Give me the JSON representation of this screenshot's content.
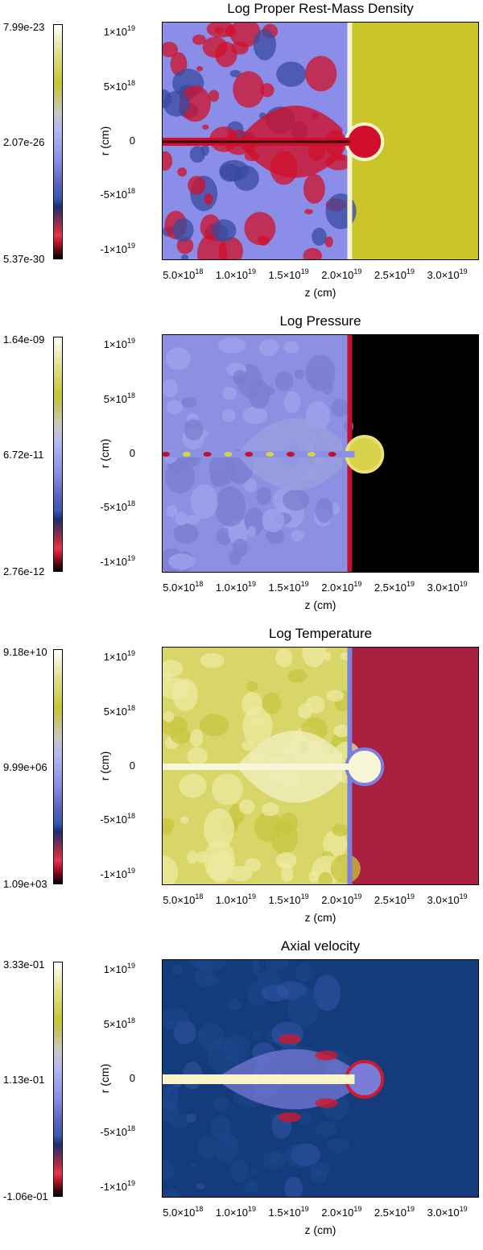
{
  "chart_data": [
    {
      "type": "heatmap",
      "title": "Log Proper Rest-Mass Density",
      "xlabel": "z (cm)",
      "ylabel": "r (cm)",
      "xlim": [
        3e+18,
        3.3e+19
      ],
      "ylim": [
        -1.1e+19,
        1.1e+19
      ],
      "x_ticks": [
        5e+18,
        1e+19,
        1.5e+19,
        2e+19,
        2.5e+19,
        3e+19
      ],
      "x_tick_labels": [
        "5.0×10^18",
        "1.0×10^19",
        "1.5×10^19",
        "2.0×10^19",
        "2.5×10^19",
        "3.0×10^19"
      ],
      "y_ticks": [
        1e+19,
        5e+18,
        0,
        -5e+18,
        -1e+19
      ],
      "y_tick_labels": [
        "1×10^19",
        "5×10^18",
        "0",
        "-5×10^18",
        "-1×10^19"
      ],
      "colorbar": {
        "max": "7.99e-23",
        "mid": "2.07e-26",
        "min": "5.37e-30"
      },
      "colors": {
        "cocoon": "#8a8ee8",
        "ambient": "#c8c42a",
        "core": "#d0102a",
        "shock": "#f6f4c8"
      }
    },
    {
      "type": "heatmap",
      "title": "Log Pressure",
      "xlabel": "z (cm)",
      "ylabel": "r (cm)",
      "xlim": [
        3e+18,
        3.3e+19
      ],
      "ylim": [
        -1.1e+19,
        1.1e+19
      ],
      "x_ticks": [
        5e+18,
        1e+19,
        1.5e+19,
        2e+19,
        2.5e+19,
        3e+19
      ],
      "x_tick_labels": [
        "5.0×10^18",
        "1.0×10^19",
        "1.5×10^19",
        "2.0×10^19",
        "2.5×10^19",
        "3.0×10^19"
      ],
      "y_ticks": [
        1e+19,
        5e+18,
        0,
        -5e+18,
        -1e+19
      ],
      "y_tick_labels": [
        "1×10^19",
        "5×10^18",
        "0",
        "-5×10^18",
        "-1×10^19"
      ],
      "colorbar": {
        "max": "1.64e-09",
        "mid": "6.72e-11",
        "min": "2.76e-12"
      },
      "colors": {
        "cocoon": "#8c90e2",
        "ambient": "#000000",
        "core": "#d8d24a",
        "shock": "#c4102a"
      }
    },
    {
      "type": "heatmap",
      "title": "Log Temperature",
      "xlabel": "z (cm)",
      "ylabel": "r (cm)",
      "xlim": [
        3e+18,
        3.3e+19
      ],
      "ylim": [
        -1.1e+19,
        1.1e+19
      ],
      "x_ticks": [
        5e+18,
        1e+19,
        1.5e+19,
        2e+19,
        2.5e+19,
        3e+19
      ],
      "x_tick_labels": [
        "5.0×10^18",
        "1.0×10^19",
        "1.5×10^19",
        "2.0×10^19",
        "2.5×10^19",
        "3.0×10^19"
      ],
      "y_ticks": [
        1e+19,
        5e+18,
        0,
        -5e+18,
        -1e+19
      ],
      "y_tick_labels": [
        "1×10^19",
        "5×10^18",
        "0",
        "-5×10^18",
        "-1×10^19"
      ],
      "colorbar": {
        "max": "9.18e+10",
        "mid": "9.99e+06",
        "min": "1.09e+03"
      },
      "colors": {
        "cocoon": "#d8d668",
        "ambient": "#a8203e",
        "core": "#f8f6d8",
        "shock": "#7a80e0"
      }
    },
    {
      "type": "heatmap",
      "title": "Axial velocity",
      "xlabel": "z (cm)",
      "ylabel": "r (cm)",
      "xlim": [
        3e+18,
        3.3e+19
      ],
      "ylim": [
        -1.1e+19,
        1.1e+19
      ],
      "x_ticks": [
        5e+18,
        1e+19,
        1.5e+19,
        2e+19,
        2.5e+19,
        3e+19
      ],
      "x_tick_labels": [
        "5.0×10^18",
        "1.0×10^19",
        "1.5×10^19",
        "2.0×10^19",
        "2.5×10^19",
        "3.0×10^19"
      ],
      "y_ticks": [
        1e+19,
        5e+18,
        0,
        -5e+18,
        -1e+19
      ],
      "y_tick_labels": [
        "1×10^19",
        "5×10^18",
        "0",
        "-5×10^18",
        "-1×10^19"
      ],
      "colorbar": {
        "max": "3.33e-01",
        "mid": "1.13e-01",
        "min": "-1.06e-01"
      },
      "colors": {
        "cocoon": "#7a7cd8",
        "ambient": "#143c7c",
        "core": "#f8f4c8",
        "shock": "#d01830"
      }
    }
  ]
}
